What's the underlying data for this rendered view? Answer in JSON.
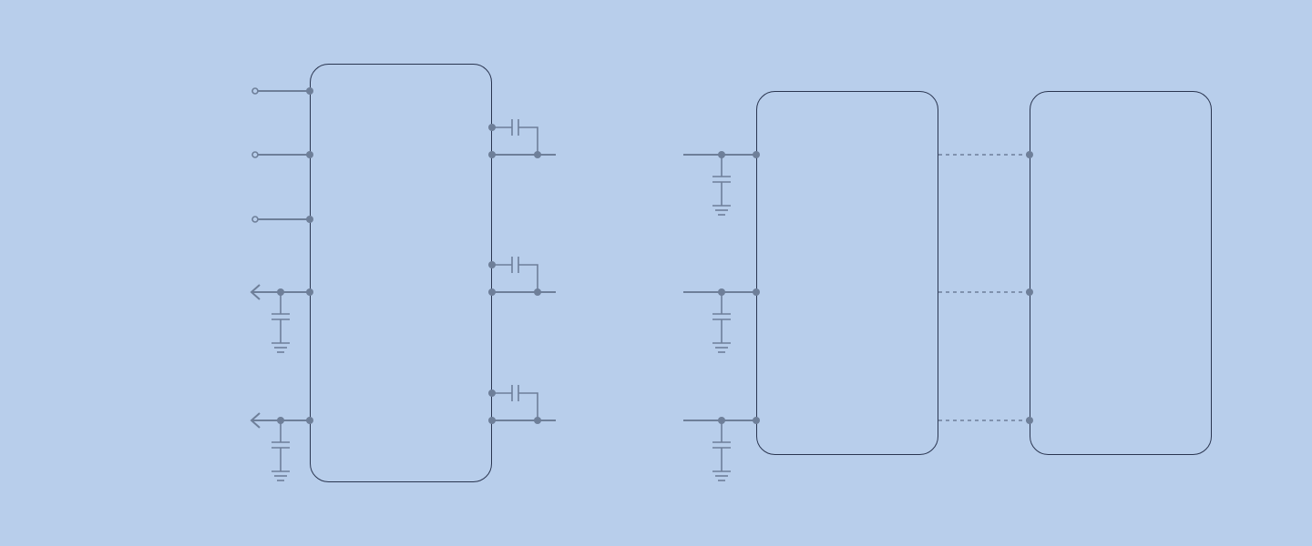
{
  "diagram": {
    "blocks": [
      "chip-left",
      "chip-center",
      "chip-right"
    ],
    "colors": {
      "background": "#b8ceeb",
      "wire": "#6e7f99",
      "outline": "#2a3550"
    }
  }
}
